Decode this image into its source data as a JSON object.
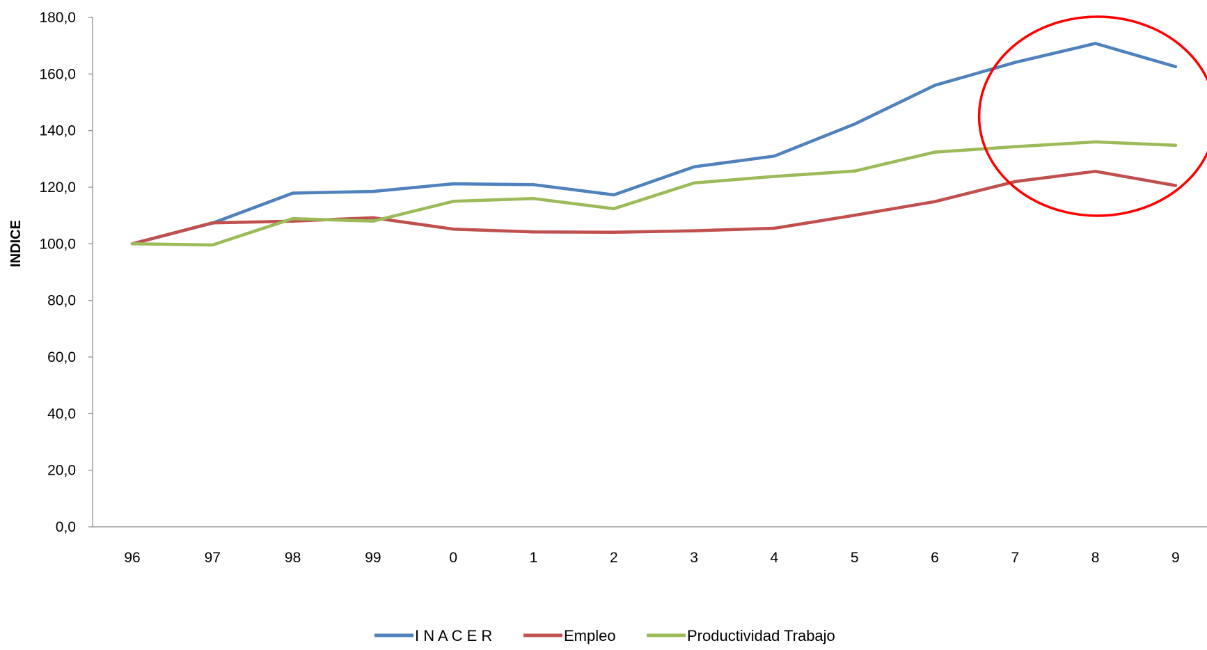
{
  "chart_data": {
    "type": "line",
    "title": "",
    "xlabel": "",
    "ylabel": "INDICE",
    "categories": [
      "96",
      "97",
      "98",
      "99",
      "0",
      "1",
      "2",
      "3",
      "4",
      "5",
      "6",
      "7",
      "8",
      "9"
    ],
    "ylim": [
      0,
      180
    ],
    "yticks": [
      0,
      20,
      40,
      60,
      80,
      100,
      120,
      140,
      160,
      180
    ],
    "ytick_labels": [
      "0,0",
      "20,0",
      "40,0",
      "60,0",
      "80,0",
      "100,0",
      "120,0",
      "140,0",
      "160,0",
      "180,0"
    ],
    "grid": false,
    "legend_position": "bottom",
    "series": [
      {
        "name": "I N A C E R",
        "color": "#4F81BD",
        "values": [
          100.0,
          107.3,
          117.9,
          118.5,
          121.2,
          120.9,
          117.3,
          127.2,
          131.0,
          142.3,
          156.0,
          164.1,
          170.8,
          162.6
        ]
      },
      {
        "name": "Empleo",
        "color": "#C0504D",
        "values": [
          100.0,
          107.4,
          108.0,
          109.2,
          105.2,
          104.2,
          104.1,
          104.6,
          105.5,
          110.1,
          114.9,
          122.0,
          125.6,
          120.6
        ]
      },
      {
        "name": "Productividad Trabajo",
        "color": "#9BBB59",
        "values": [
          100.0,
          99.6,
          108.9,
          108.0,
          115.0,
          116.0,
          112.4,
          121.5,
          123.8,
          125.7,
          132.4,
          134.3,
          136.0,
          134.8
        ]
      }
    ],
    "annotations": [
      {
        "type": "ellipse",
        "shape": "red circle",
        "around_categories": [
          "7",
          "8",
          "9"
        ],
        "color": "#FF0000"
      }
    ]
  }
}
